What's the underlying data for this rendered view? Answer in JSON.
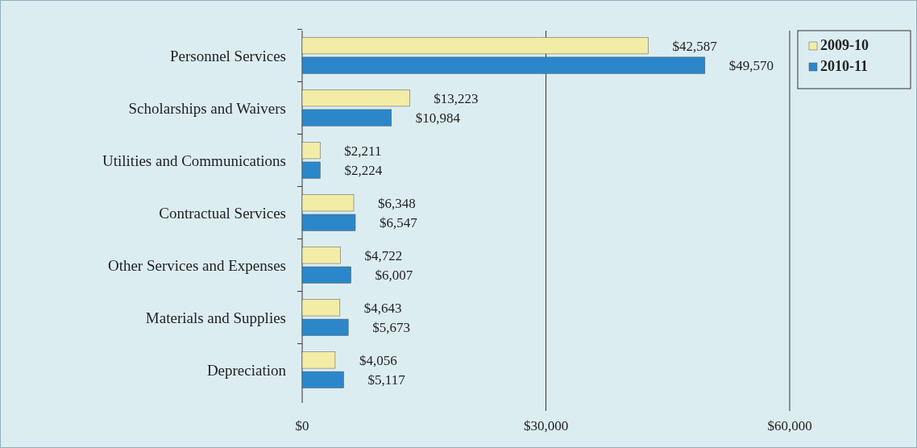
{
  "chart_data": {
    "type": "bar",
    "orientation": "horizontal",
    "categories": [
      "Personnel Services",
      "Scholarships and Waivers",
      "Utilities and Communications",
      "Contractual Services",
      "Other Services and Expenses",
      "Materials and Supplies",
      "Depreciation"
    ],
    "series": [
      {
        "name": "2009-10",
        "color": "#f2eca6",
        "values": [
          42587,
          13223,
          2211,
          6348,
          4722,
          4643,
          4056
        ],
        "value_labels": [
          "$42,587",
          "$13,223",
          "$2,211",
          "$6,348",
          "$4,722",
          "$4,643",
          "$4,056"
        ]
      },
      {
        "name": "2010-11",
        "color": "#2b87c9",
        "values": [
          49570,
          10984,
          2224,
          6547,
          6007,
          5673,
          5117
        ],
        "value_labels": [
          "$49,570",
          "$10,984",
          "$2,224",
          "$6,547",
          "$6,007",
          "$5,673",
          "$5,117"
        ]
      }
    ],
    "xlim": [
      0,
      60000
    ],
    "xticks": [
      {
        "value": 0,
        "label": "$0"
      },
      {
        "value": 30000,
        "label": "$30,000"
      },
      {
        "value": 60000,
        "label": "$60,000"
      }
    ],
    "grid": "x",
    "legend": "top right"
  }
}
